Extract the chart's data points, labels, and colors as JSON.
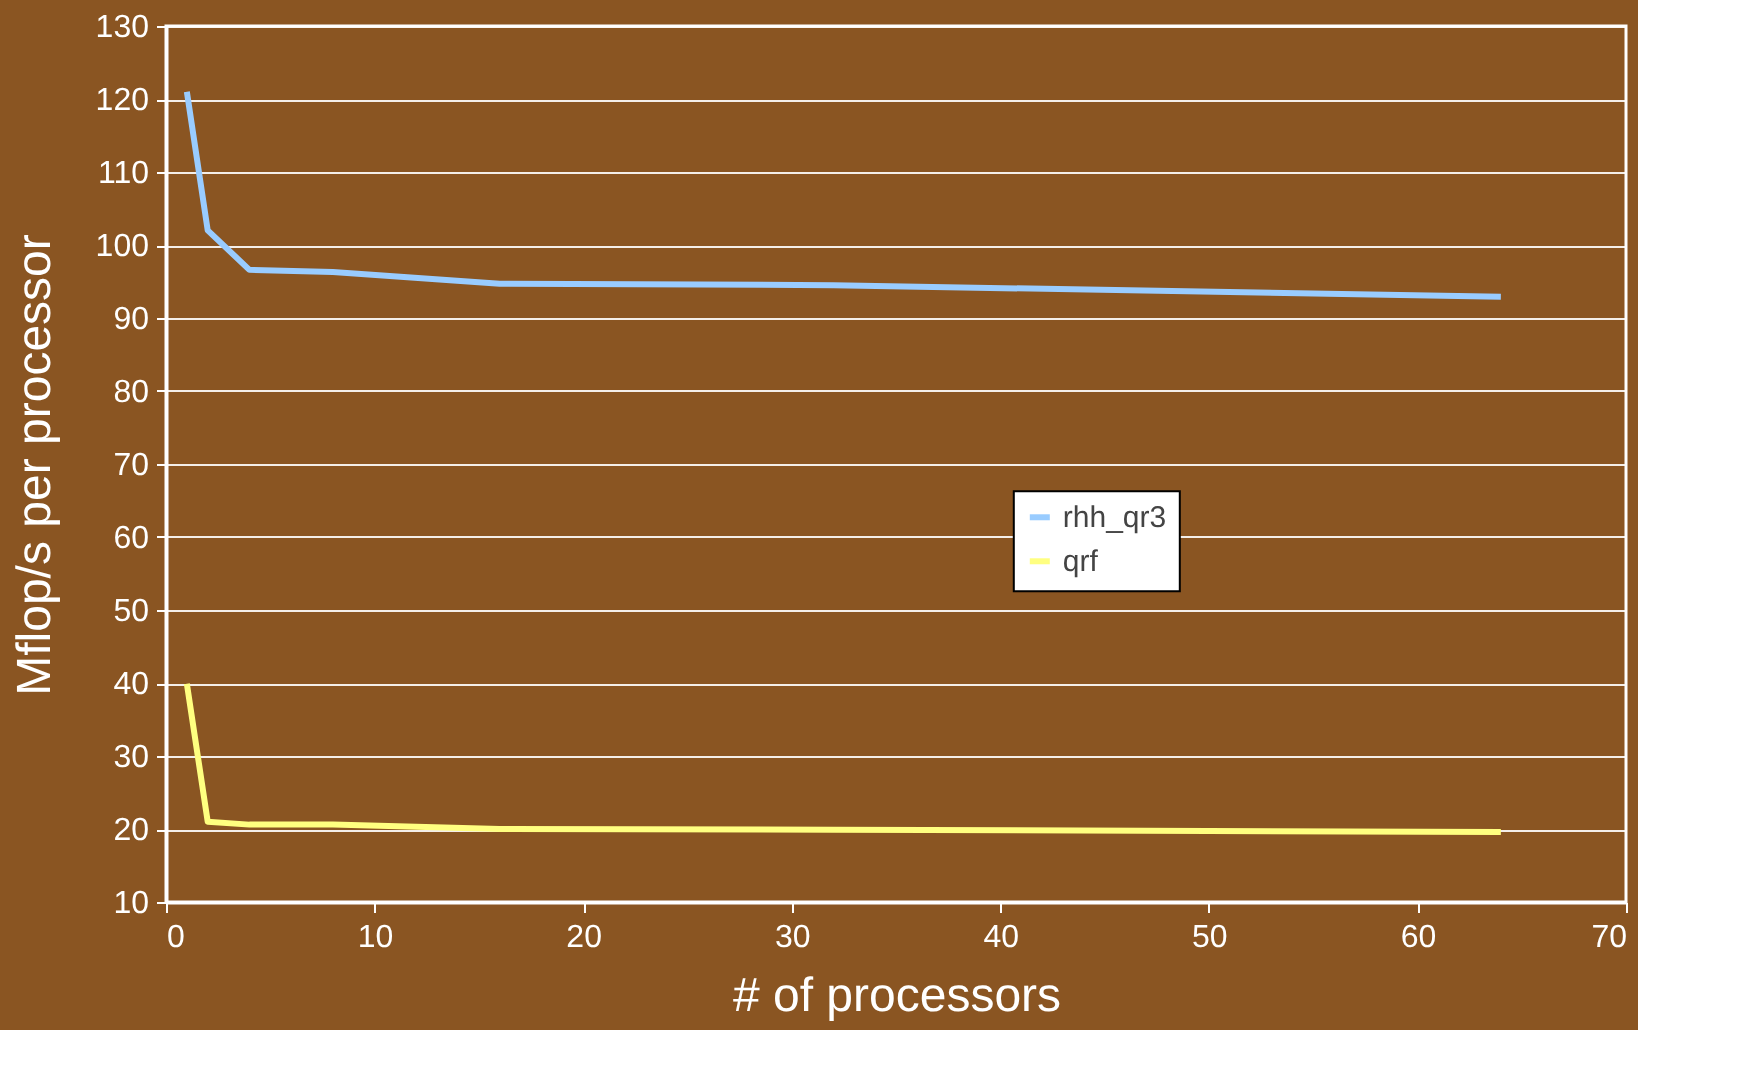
{
  "chart_data": {
    "type": "line",
    "xlabel": "# of processors",
    "ylabel": "Mflop/s per processor",
    "x": [
      1,
      2,
      4,
      8,
      16,
      32,
      64
    ],
    "series": [
      {
        "name": "rhh_qr3",
        "color": "#99ccff",
        "values": [
          121,
          102,
          96.6,
          96.3,
          94.7,
          94.5,
          92.9
        ]
      },
      {
        "name": "qrf",
        "color": "#ffff80",
        "values": [
          39.9,
          21.0,
          20.6,
          20.6,
          20.0,
          19.9,
          19.6
        ]
      }
    ],
    "xlim": [
      0,
      70
    ],
    "xticks": [
      0,
      10,
      20,
      30,
      40,
      50,
      60,
      70
    ],
    "ylim": [
      10,
      130
    ],
    "yticks": [
      10,
      20,
      30,
      40,
      50,
      60,
      70,
      80,
      90,
      100,
      110,
      120,
      130
    ],
    "grid": "y",
    "legend": "right",
    "marker": "none",
    "line_style": "solid"
  }
}
